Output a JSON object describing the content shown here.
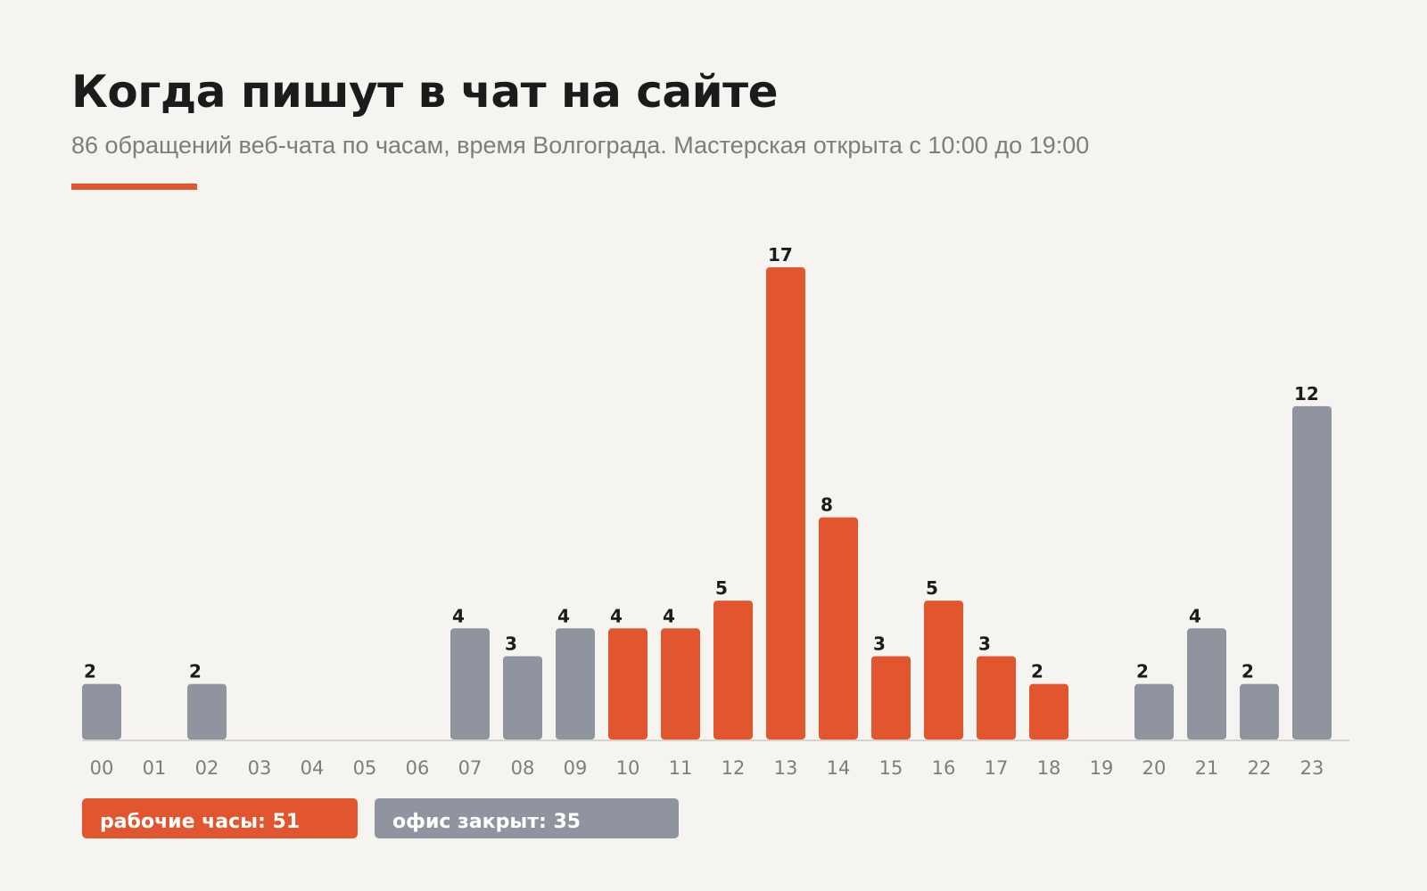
{
  "header": {
    "title": "Когда пишут в чат на сайте",
    "subtitle": "86 обращений веб-чата по часам, время Волгограда. Мастерская открыта с 10:00 до 19:00"
  },
  "colors": {
    "work": "#e2562f",
    "closed": "#8f949e",
    "background": "#f5f4f1",
    "axis": "#d6d3ce",
    "tick_text": "#7d7d7d",
    "label_text": "#1b1b1b"
  },
  "chart_data": {
    "type": "bar",
    "categories": [
      "00",
      "01",
      "02",
      "03",
      "04",
      "05",
      "06",
      "07",
      "08",
      "09",
      "10",
      "11",
      "12",
      "13",
      "14",
      "15",
      "16",
      "17",
      "18",
      "19",
      "20",
      "21",
      "22",
      "23"
    ],
    "values": [
      2,
      0,
      2,
      0,
      0,
      0,
      0,
      4,
      3,
      4,
      4,
      4,
      5,
      17,
      8,
      3,
      5,
      3,
      2,
      0,
      2,
      4,
      2,
      12
    ],
    "groups": [
      "closed",
      "closed",
      "closed",
      "closed",
      "closed",
      "closed",
      "closed",
      "closed",
      "closed",
      "closed",
      "work",
      "work",
      "work",
      "work",
      "work",
      "work",
      "work",
      "work",
      "work",
      "closed",
      "closed",
      "closed",
      "closed",
      "closed"
    ],
    "data_labels": true,
    "ylim": [
      0,
      17
    ],
    "grid": false,
    "legend": [
      {
        "group": "work",
        "label": "рабочие часы: 51"
      },
      {
        "group": "closed",
        "label": "офис закрыт: 35"
      }
    ],
    "legend_position": "bottom-left"
  }
}
